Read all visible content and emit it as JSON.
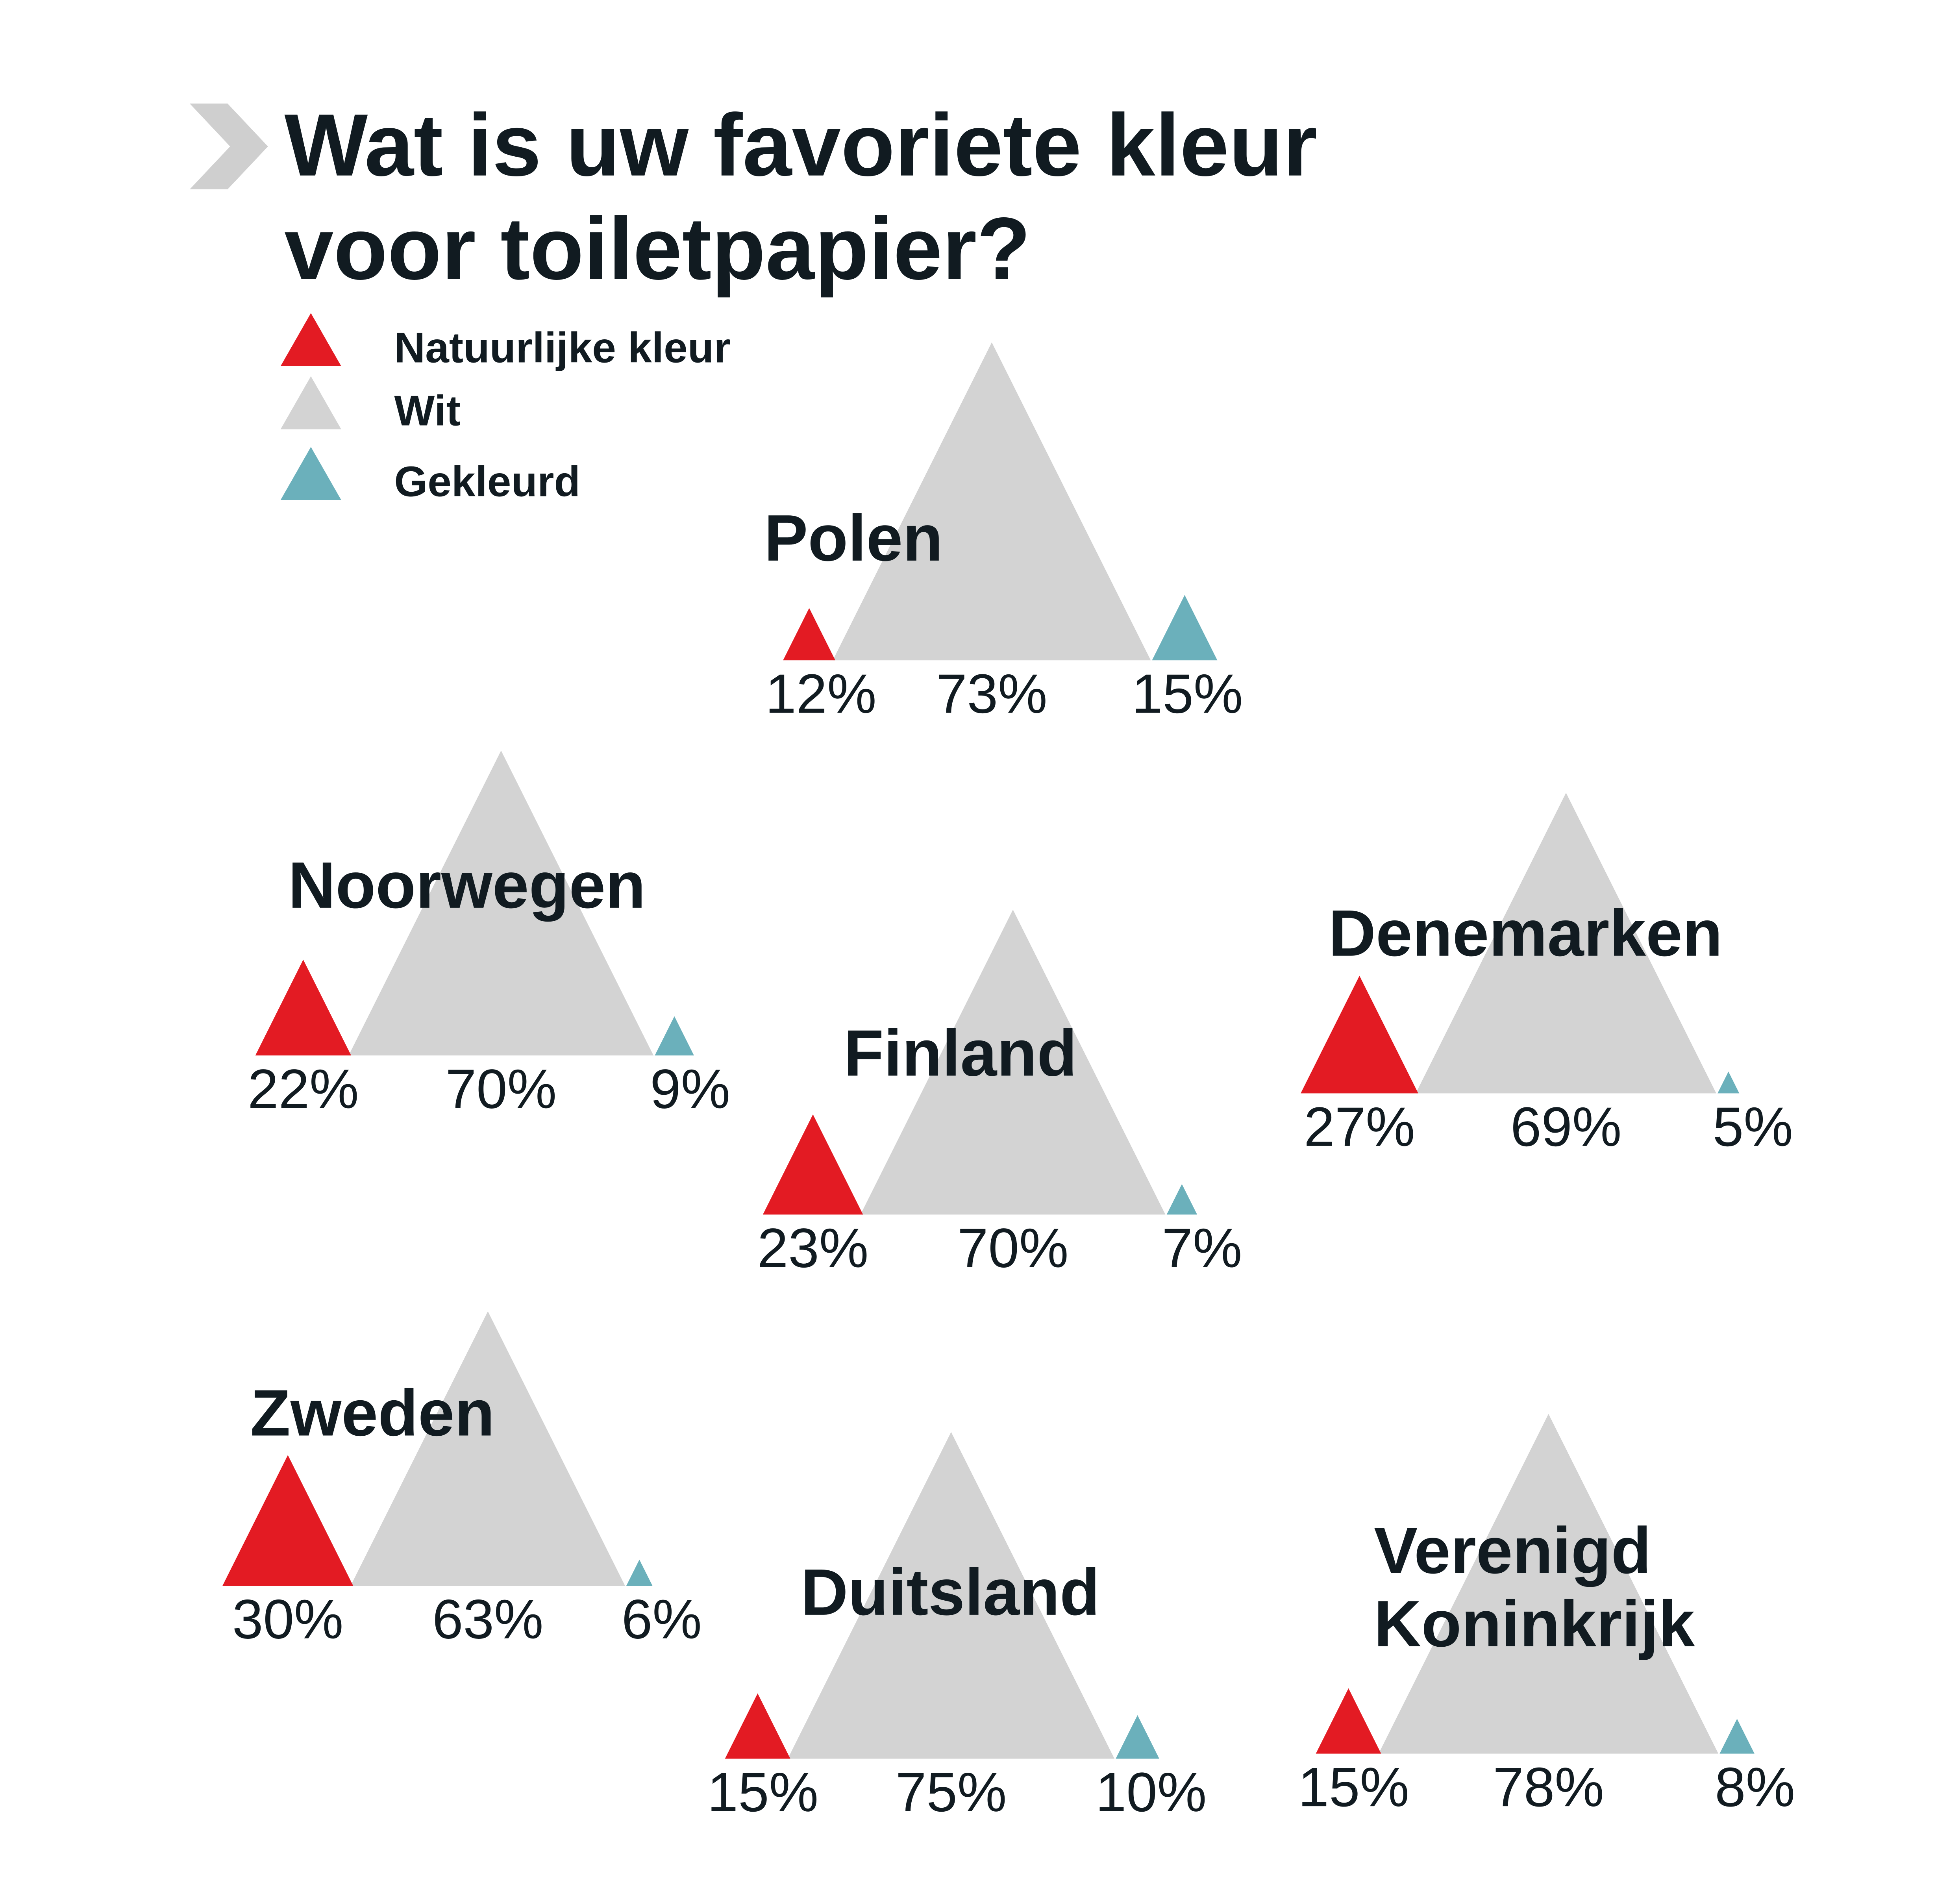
{
  "chart_data": {
    "type": "triangle",
    "title": "Wat is uw favoriete kleur voor toiletpapier?",
    "categories": [
      "Polen",
      "Noorwegen",
      "Finland",
      "Denemarken",
      "Zweden",
      "Duitsland",
      "Verenigd Koninkrijk"
    ],
    "series": [
      {
        "name": "Natuurlijke kleur",
        "color": "#e31b23",
        "values": [
          12,
          22,
          23,
          27,
          30,
          15,
          15
        ],
        "value_labels": [
          "12%",
          "22%",
          "23%",
          "27%",
          "30%",
          "15%",
          "15%"
        ]
      },
      {
        "name": "Wit",
        "color": "#d3d3d3",
        "values": [
          73,
          70,
          70,
          69,
          63,
          75,
          78
        ],
        "value_labels": [
          "73%",
          "70%",
          "70%",
          "69%",
          "63%",
          "75%",
          "78%"
        ]
      },
      {
        "name": "Gekleurd",
        "color": "#6bb0bb",
        "values": [
          15,
          9,
          7,
          5,
          6,
          10,
          8
        ],
        "value_labels": [
          "15%",
          "9%",
          "7%",
          "5%",
          "6%",
          "10%",
          "8%"
        ]
      }
    ]
  }
}
